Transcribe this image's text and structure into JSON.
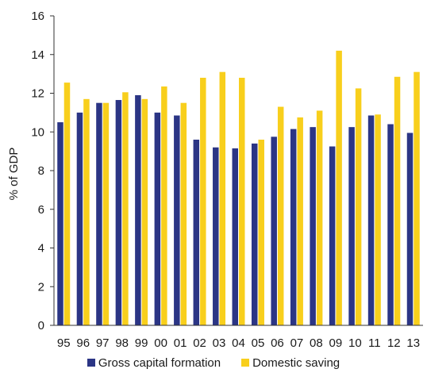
{
  "chart_data": {
    "type": "bar",
    "categories": [
      "95",
      "96",
      "97",
      "98",
      "99",
      "00",
      "01",
      "02",
      "03",
      "04",
      "05",
      "06",
      "07",
      "08",
      "09",
      "10",
      "11",
      "12",
      "13"
    ],
    "series": [
      {
        "name": "Gross capital formation",
        "color": "#2b3585",
        "values": [
          10.5,
          11.0,
          11.5,
          11.65,
          11.9,
          11.0,
          10.85,
          9.6,
          9.2,
          9.15,
          9.4,
          9.75,
          10.15,
          10.25,
          9.25,
          10.25,
          10.85,
          10.4,
          9.95
        ]
      },
      {
        "name": "Domestic saving",
        "color": "#f8cf1c",
        "values": [
          12.55,
          11.7,
          11.5,
          12.05,
          11.7,
          12.35,
          11.5,
          12.8,
          13.1,
          12.8,
          9.6,
          11.3,
          10.75,
          11.1,
          14.2,
          12.25,
          10.9,
          12.85,
          13.1
        ]
      }
    ],
    "title": "",
    "xlabel": "",
    "ylabel": "% of GDP",
    "ylim": [
      0,
      16
    ],
    "yticks": [
      "0",
      "2",
      "4",
      "6",
      "8",
      "10",
      "12",
      "14",
      "16"
    ],
    "grid": false,
    "legend_position": "bottom"
  }
}
